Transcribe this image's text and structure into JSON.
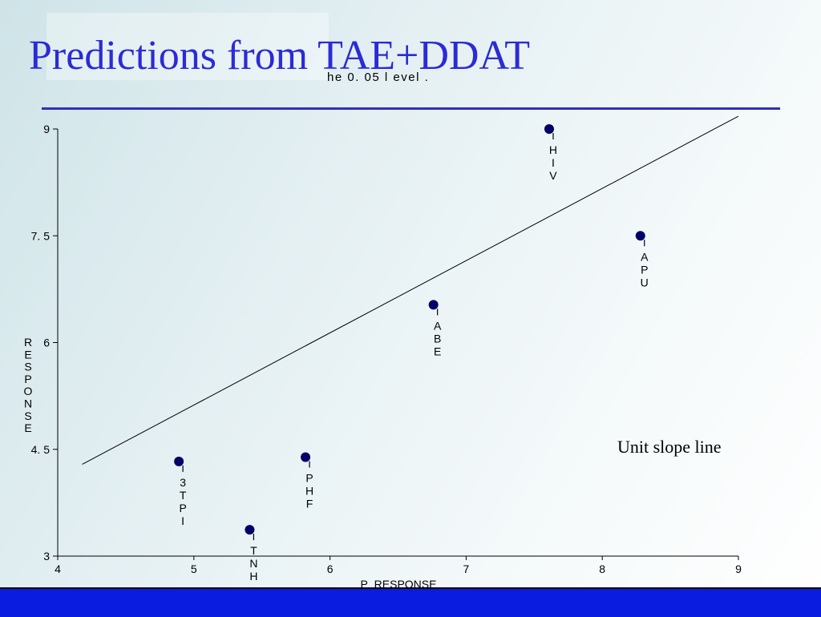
{
  "slide": {
    "title": "Predictions from TAE+DDAT",
    "subtitle_fragment": "he  0. 05  l evel .",
    "annotation": "Unit slope line"
  },
  "colors": {
    "title": "#2b2bd6",
    "rule": "#2f2fbf",
    "footer": "#0a1ce0",
    "points": "#000066"
  },
  "chart_data": {
    "type": "scatter",
    "title": "",
    "xlabel": "P_RESPONSE",
    "ylabel": "RESPONSE",
    "xlim": [
      4,
      9
    ],
    "ylim": [
      3,
      9
    ],
    "x_ticks": [
      4,
      5,
      6,
      7,
      8,
      9
    ],
    "x_tick_labels": [
      "4",
      "5",
      "6",
      "7",
      "8",
      "9"
    ],
    "y_ticks": [
      3,
      4.5,
      6,
      7.5,
      9
    ],
    "y_tick_labels": [
      "3",
      "4. 5",
      "6",
      "7. 5",
      "9"
    ],
    "grid": false,
    "points": [
      {
        "label": "3TPI",
        "x": 4.89,
        "y": 4.33
      },
      {
        "label": "TNH",
        "x": 5.41,
        "y": 3.37
      },
      {
        "label": "PHF",
        "x": 5.82,
        "y": 4.39
      },
      {
        "label": "ABE",
        "x": 6.76,
        "y": 6.53
      },
      {
        "label": "HIV",
        "x": 7.61,
        "y": 9.0
      },
      {
        "label": "APU",
        "x": 8.28,
        "y": 7.5
      }
    ],
    "reference_line": {
      "name": "Unit slope line",
      "x": [
        4.18,
        9.0
      ],
      "y": [
        4.29,
        9.18
      ]
    }
  }
}
